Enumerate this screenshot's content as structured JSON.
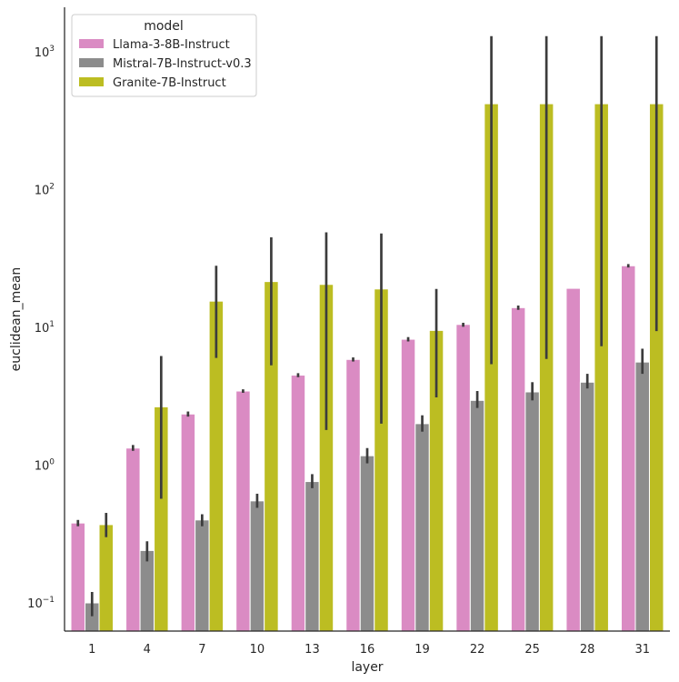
{
  "chart_data": {
    "type": "bar",
    "scale": "log",
    "xlabel": "layer",
    "ylabel": "euclidean_mean",
    "ylim": [
      0.05,
      1500
    ],
    "yticks": [
      {
        "value": 0.1,
        "base": "10",
        "exp": "−1"
      },
      {
        "value": 1,
        "base": "10",
        "exp": "0"
      },
      {
        "value": 10,
        "base": "10",
        "exp": "1"
      },
      {
        "value": 100,
        "base": "10",
        "exp": "2"
      },
      {
        "value": 1000,
        "base": "10",
        "exp": "3"
      }
    ],
    "categories": [
      "1",
      "4",
      "7",
      "10",
      "13",
      "16",
      "19",
      "22",
      "25",
      "28",
      "31"
    ],
    "legend": {
      "title": "model",
      "placement": "top-left"
    },
    "series": [
      {
        "name": "Llama-3-8B-Instruct",
        "color": "#da8bc3",
        "values": [
          0.38,
          1.33,
          2.35,
          3.45,
          4.5,
          5.85,
          8.2,
          10.5,
          13.9,
          19.2,
          28.0
        ],
        "err_low": [
          0.36,
          1.27,
          2.25,
          3.35,
          4.35,
          5.65,
          7.9,
          10.1,
          13.4,
          19.2,
          27.2
        ],
        "err_high": [
          0.4,
          1.4,
          2.45,
          3.55,
          4.65,
          6.05,
          8.5,
          10.8,
          14.4,
          19.2,
          28.8
        ]
      },
      {
        "name": "Mistral-7B-Instruct-v0.3",
        "color": "#8c8c8c",
        "values": [
          0.1,
          0.24,
          0.4,
          0.55,
          0.76,
          1.17,
          2.0,
          2.95,
          3.4,
          4.0,
          5.6
        ],
        "err_low": [
          0.08,
          0.2,
          0.36,
          0.49,
          0.68,
          1.03,
          1.75,
          2.6,
          2.95,
          3.6,
          4.6
        ],
        "err_high": [
          0.12,
          0.28,
          0.44,
          0.62,
          0.86,
          1.33,
          2.3,
          3.45,
          4.0,
          4.6,
          7.0
        ]
      },
      {
        "name": "Granite-7B-Instruct",
        "color": "#bcbd22",
        "values": [
          0.37,
          2.65,
          15.5,
          21.5,
          20.5,
          19.0,
          9.5,
          420.0,
          420.0,
          420.0,
          420.0
        ],
        "err_low": [
          0.3,
          0.57,
          6.0,
          5.3,
          1.8,
          2.0,
          3.1,
          5.4,
          5.9,
          7.3,
          9.4
        ],
        "err_high": [
          0.45,
          6.2,
          28.0,
          45.0,
          49.0,
          48.0,
          19.0,
          1300.0,
          1300.0,
          1300.0,
          1300.0
        ]
      }
    ]
  }
}
